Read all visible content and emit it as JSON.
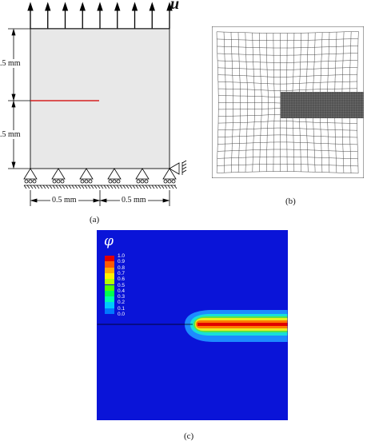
{
  "figure": {
    "panel_a": {
      "load_symbol": "u",
      "dim_top": ".5 mm",
      "dim_bottom": ".5 mm",
      "dim_left": "0.5 mm",
      "dim_right": "0.5 mm",
      "caption": "(a)",
      "crack_color": "#d62020",
      "specimen_color": "#e8e8e8"
    },
    "panel_b": {
      "caption": "(b)"
    },
    "panel_c": {
      "caption": "(c)",
      "legend_symbol": "φ",
      "legend_labels": [
        "1.0",
        "0.9",
        "0.8",
        "0.7",
        "0.6",
        "0.5",
        "0.4",
        "0.3",
        "0.2",
        "0.1",
        "0.0"
      ],
      "legend_colors": [
        "#e00000",
        "#ff5a00",
        "#ffaa00",
        "#fff000",
        "#b4ff00",
        "#50ff00",
        "#00ff50",
        "#00ffaa",
        "#00c8ff",
        "#0078ff",
        "#0028ff"
      ],
      "background_color": "#0a14d8"
    }
  }
}
